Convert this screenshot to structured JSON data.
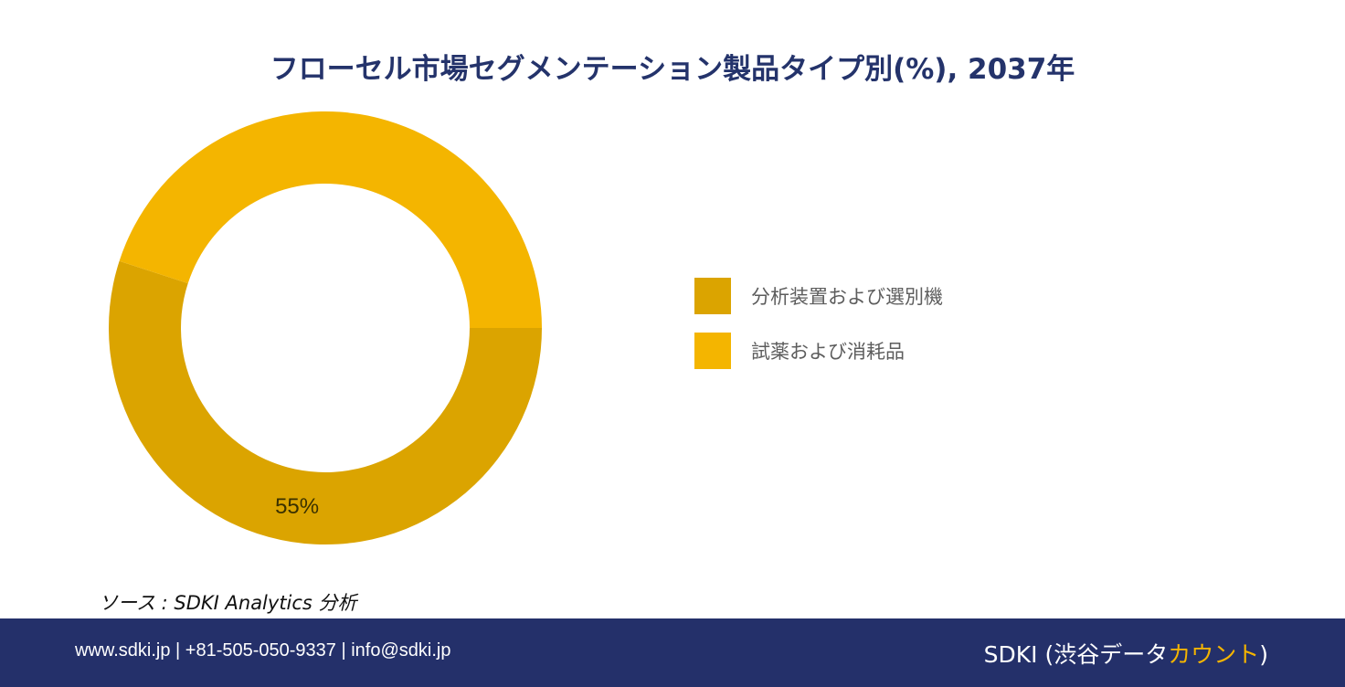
{
  "chart_data": {
    "type": "pie",
    "variant": "donut",
    "title": "フローセル市場セグメンテーション製品タイプ別(%), 2037年",
    "categories": [
      "分析装置および選別機",
      "試薬および消耗品"
    ],
    "values": [
      55,
      45
    ],
    "colors": [
      "#dba400",
      "#f4b500"
    ],
    "data_labels": [
      "55%",
      ""
    ],
    "legend_position": "right"
  },
  "source": "ソース : SDKI Analytics 分析",
  "footer": {
    "contact": "www.sdki.jp | +81-505-050-9337 | info@sdki.jp",
    "brand_prefix": "SDKI (渋谷データ",
    "brand_accent": "カウント",
    "brand_suffix": ")"
  }
}
